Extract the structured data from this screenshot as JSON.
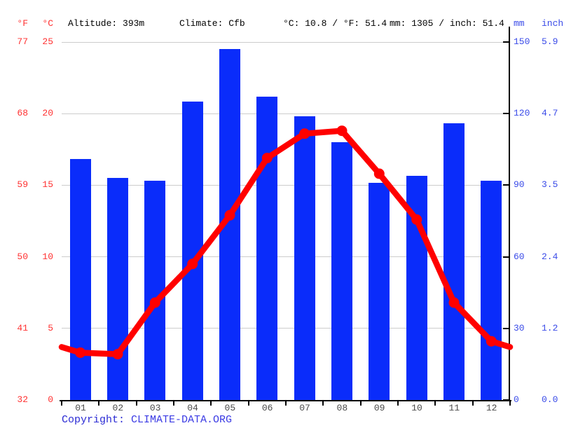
{
  "header": {
    "unit_f": "°F",
    "unit_c": "°C",
    "altitude": "Altitude: 393m",
    "climate": "Climate: Cfb",
    "temperature_summary": "°C: 10.8 / °F: 51.4",
    "precipitation_summary": "mm: 1305 / inch: 51.4",
    "unit_mm": "mm",
    "unit_inch": "inch"
  },
  "chart_data": {
    "type": "combo",
    "categories": [
      "01",
      "02",
      "03",
      "04",
      "05",
      "06",
      "07",
      "08",
      "09",
      "10",
      "11",
      "12"
    ],
    "series": [
      {
        "name": "precipitation",
        "type": "bar",
        "unit": "mm",
        "values": [
          101,
          93,
          92,
          125,
          147,
          127,
          119,
          108,
          91,
          94,
          116,
          92
        ]
      },
      {
        "name": "temperature",
        "type": "line",
        "unit": "°C",
        "values": [
          3.3,
          3.2,
          6.8,
          9.5,
          12.9,
          16.9,
          18.6,
          18.8,
          15.8,
          12.6,
          6.8,
          4.1
        ],
        "edge_value": 3.7
      }
    ],
    "annual": {
      "temp_c": 10.8,
      "temp_f": 51.4,
      "precip_mm": 1305,
      "precip_inch": 51.4
    },
    "left_axis": {
      "f_ticks": [
        "77",
        "68",
        "59",
        "50",
        "41",
        "32"
      ],
      "c_ticks": [
        "25",
        "20",
        "15",
        "10",
        "5",
        "0"
      ],
      "range_c": [
        0,
        25
      ]
    },
    "right_axis": {
      "mm_ticks": [
        "150",
        "120",
        "90",
        "60",
        "30",
        "0"
      ],
      "inch_ticks": [
        "5.9",
        "4.7",
        "3.5",
        "2.4",
        "1.2",
        "0.0"
      ],
      "range_mm": [
        0,
        150
      ]
    },
    "grid": true,
    "legend": "none"
  },
  "copyright": {
    "label": "Copyright: ",
    "link": "CLIMATE-DATA.ORG"
  },
  "colors": {
    "bar_blue": "#0a2cfa",
    "line_red": "#ff0000",
    "left_axis_red": "#ff3232",
    "right_axis_blue": "#3a4be8",
    "grid_gray": "#cccccc",
    "axis_black": "#000000",
    "month_gray": "#4a4a4a",
    "copyright_blue": "#2b2bd4",
    "copyright_link_blue": "#3b3be4"
  }
}
